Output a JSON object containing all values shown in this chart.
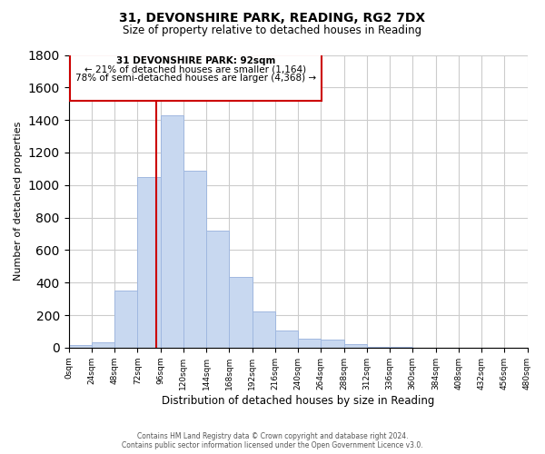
{
  "title": "31, DEVONSHIRE PARK, READING, RG2 7DX",
  "subtitle": "Size of property relative to detached houses in Reading",
  "xlabel": "Distribution of detached houses by size in Reading",
  "ylabel": "Number of detached properties",
  "bar_color": "#c8d8f0",
  "bar_edge_color": "#a0b8e0",
  "annotation_line_color": "#cc0000",
  "background_color": "#ffffff",
  "grid_color": "#cccccc",
  "bin_edges": [
    0,
    24,
    48,
    72,
    96,
    120,
    144,
    168,
    192,
    216,
    240,
    264,
    288,
    312,
    336,
    360,
    384,
    408,
    432,
    456,
    480
  ],
  "bin_labels": [
    "0sqm",
    "24sqm",
    "48sqm",
    "72sqm",
    "96sqm",
    "120sqm",
    "144sqm",
    "168sqm",
    "192sqm",
    "216sqm",
    "240sqm",
    "264sqm",
    "288sqm",
    "312sqm",
    "336sqm",
    "360sqm",
    "384sqm",
    "408sqm",
    "432sqm",
    "456sqm",
    "480sqm"
  ],
  "counts": [
    15,
    35,
    350,
    1050,
    1430,
    1090,
    720,
    435,
    220,
    105,
    55,
    50,
    20,
    5,
    2,
    1,
    0,
    0,
    0,
    0
  ],
  "property_size": 92,
  "annotation_text_line1": "31 DEVONSHIRE PARK: 92sqm",
  "annotation_text_line2": "← 21% of detached houses are smaller (1,164)",
  "annotation_text_line3": "78% of semi-detached houses are larger (4,368) →",
  "ylim": [
    0,
    1800
  ],
  "yticks": [
    0,
    200,
    400,
    600,
    800,
    1000,
    1200,
    1400,
    1600,
    1800
  ],
  "footer_line1": "Contains HM Land Registry data © Crown copyright and database right 2024.",
  "footer_line2": "Contains public sector information licensed under the Open Government Licence v3.0."
}
